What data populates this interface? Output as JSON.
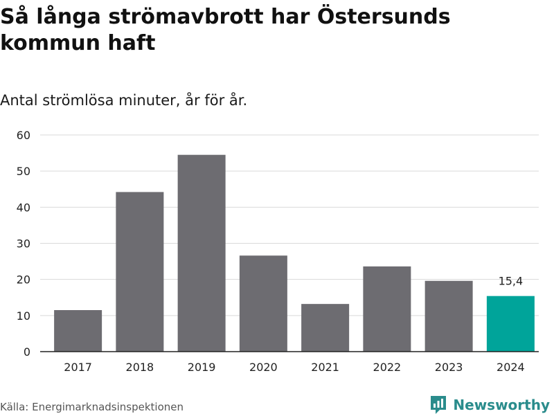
{
  "title": "Så långa strömavbrott har Östersunds kommun haft",
  "subtitle": "Antal strömlösa minuter, år för år.",
  "source": "Källa: Energimarknadsinspektionen",
  "brand": {
    "name": "Newsworthy",
    "icon": "newsworthy-logo-icon"
  },
  "colors": {
    "bar": "#6d6c71",
    "highlight": "#00a49a",
    "grid": "#d9d9d9",
    "axis": "#222222",
    "brand": "#2a8c8c"
  },
  "chart_data": {
    "type": "bar",
    "categories": [
      "2017",
      "2018",
      "2019",
      "2020",
      "2021",
      "2022",
      "2023",
      "2024"
    ],
    "values": [
      11.5,
      44.2,
      54.5,
      26.6,
      13.2,
      23.6,
      19.6,
      15.4
    ],
    "highlight_index": 7,
    "data_labels": [
      {
        "index": 7,
        "text": "15,4"
      }
    ],
    "yticks": [
      0,
      10,
      20,
      30,
      40,
      50,
      60
    ],
    "ylim": [
      0,
      60
    ],
    "xlabel": "",
    "ylabel": "",
    "grid": true
  }
}
